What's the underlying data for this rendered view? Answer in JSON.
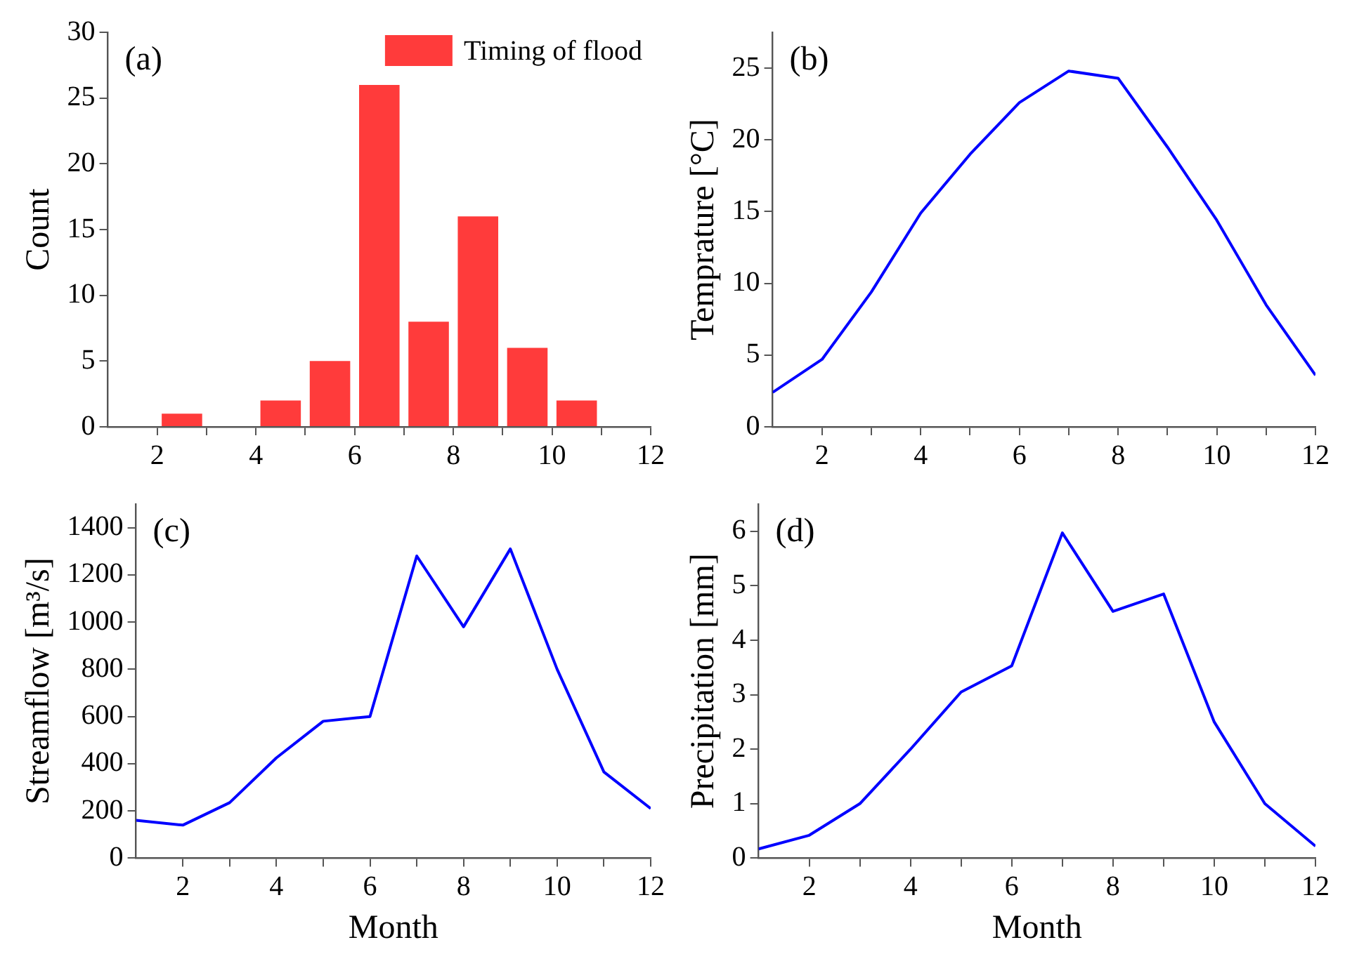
{
  "chart_data": [
    {
      "type": "histogram",
      "ylabel": "Count",
      "annotations": [
        "(a)"
      ],
      "legend": "top right",
      "bins": [
        1,
        2,
        3,
        4,
        5,
        6,
        7,
        8,
        9,
        10,
        11,
        12
      ],
      "series": [
        {
          "name": "Timing of flood",
          "color": "#ff3b3b",
          "values": [
            0,
            1,
            0,
            2,
            5,
            26,
            8,
            16,
            6,
            2,
            0
          ]
        }
      ],
      "xlim": [
        1,
        12
      ],
      "xticks": [
        2,
        {
          "value": 3,
          "label": null
        },
        4,
        {
          "value": 5,
          "label": null
        },
        6,
        {
          "value": 7,
          "label": null
        },
        8,
        {
          "value": 9,
          "label": null
        },
        10,
        {
          "value": 11,
          "label": null
        },
        12
      ],
      "ylim": [
        0,
        30
      ],
      "yticks": [
        0,
        5,
        10,
        15,
        20,
        25,
        30
      ]
    },
    {
      "type": "line",
      "ylabel": "Temprature [°C]",
      "annotations": [
        "(b)"
      ],
      "x": [
        1,
        2,
        3,
        4,
        5,
        6,
        7,
        8,
        9,
        10,
        11,
        12
      ],
      "series": [
        {
          "color": "#0000ff",
          "values": [
            2.4,
            4.7,
            9.4,
            14.9,
            19.0,
            22.6,
            24.8,
            24.3,
            19.5,
            14.4,
            8.5,
            3.6
          ]
        }
      ],
      "xlim": [
        1,
        12
      ],
      "xticks": [
        2,
        {
          "value": 3,
          "label": null
        },
        4,
        {
          "value": 5,
          "label": null
        },
        6,
        {
          "value": 7,
          "label": null
        },
        8,
        {
          "value": 9,
          "label": null
        },
        10,
        {
          "value": 11,
          "label": null
        },
        12
      ],
      "ylim": [
        0,
        27.5
      ],
      "yticks": [
        0,
        5,
        10,
        15,
        20,
        25
      ]
    },
    {
      "type": "line",
      "xlabel": "Month",
      "ylabel": "Streamflow [m³/s]",
      "annotations": [
        "(c)"
      ],
      "x": [
        1,
        2,
        3,
        4,
        5,
        6,
        7,
        8,
        9,
        10,
        11,
        12
      ],
      "series": [
        {
          "color": "#0000ff",
          "values": [
            160,
            140,
            235,
            425,
            580,
            600,
            1280,
            980,
            1310,
            800,
            365,
            210
          ]
        }
      ],
      "xlim": [
        1,
        12
      ],
      "xticks": [
        2,
        {
          "value": 3,
          "label": null
        },
        4,
        {
          "value": 5,
          "label": null
        },
        6,
        {
          "value": 7,
          "label": null
        },
        8,
        {
          "value": 9,
          "label": null
        },
        10,
        {
          "value": 11,
          "label": null
        },
        12
      ],
      "ylim": [
        0,
        1500
      ],
      "yticks": [
        0,
        200,
        400,
        600,
        800,
        1000,
        1200,
        1400
      ]
    },
    {
      "type": "line",
      "xlabel": "Month",
      "ylabel": "Precipitation [mm]",
      "annotations": [
        "(d)"
      ],
      "x": [
        1,
        2,
        3,
        4,
        5,
        6,
        7,
        8,
        9,
        10,
        11,
        12
      ],
      "series": [
        {
          "color": "#0000ff",
          "values": [
            0.17,
            0.42,
            1.0,
            2.0,
            3.05,
            3.53,
            5.97,
            4.53,
            4.85,
            2.5,
            1.0,
            0.22
          ]
        }
      ],
      "xlim": [
        1,
        12
      ],
      "xticks": [
        2,
        {
          "value": 3,
          "label": null
        },
        4,
        {
          "value": 5,
          "label": null
        },
        6,
        {
          "value": 7,
          "label": null
        },
        8,
        {
          "value": 9,
          "label": null
        },
        10,
        {
          "value": 11,
          "label": null
        },
        12
      ],
      "ylim": [
        0,
        6.5
      ],
      "yticks": [
        0,
        1,
        2,
        3,
        4,
        5,
        6
      ]
    }
  ]
}
